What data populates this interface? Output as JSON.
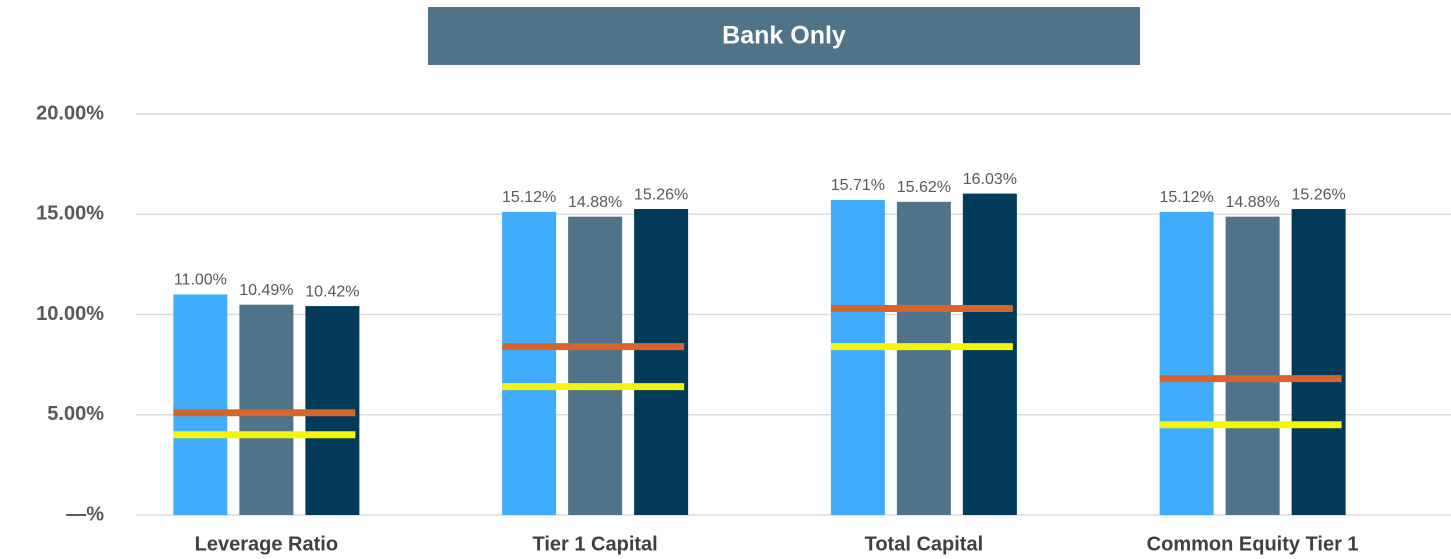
{
  "chart_data": {
    "type": "bar",
    "title": "Bank Only",
    "categories": [
      "Leverage Ratio",
      "Tier 1 Capital",
      "Total Capital",
      "Common Equity Tier 1"
    ],
    "series": [
      {
        "color": "#3fadfc",
        "values": [
          11.0,
          15.12,
          15.71,
          15.12
        ],
        "value_labels": [
          "11.00%",
          "15.12%",
          "15.71%",
          "15.12%"
        ]
      },
      {
        "color": "#4f7489",
        "values": [
          10.49,
          14.88,
          15.62,
          14.88
        ],
        "value_labels": [
          "10.49%",
          "14.88%",
          "15.62%",
          "14.88%"
        ]
      },
      {
        "color": "#023a5a",
        "values": [
          10.42,
          15.26,
          16.03,
          15.26
        ],
        "value_labels": [
          "10.42%",
          "15.26%",
          "16.03%",
          "15.26%"
        ]
      }
    ],
    "thresholds": [
      {
        "color": "#d5652b",
        "values": [
          5.1,
          8.4,
          10.3,
          6.8
        ]
      },
      {
        "color": "#f5f50a",
        "values": [
          4.0,
          6.4,
          8.4,
          4.5
        ]
      }
    ],
    "ylim": [
      0,
      20
    ],
    "yticks": [
      {
        "value": 0,
        "label": "—%"
      },
      {
        "value": 5,
        "label": "5.00%"
      },
      {
        "value": 10,
        "label": "10.00%"
      },
      {
        "value": 15,
        "label": "15.00%"
      },
      {
        "value": 20,
        "label": "20.00%"
      }
    ],
    "grid": true
  }
}
